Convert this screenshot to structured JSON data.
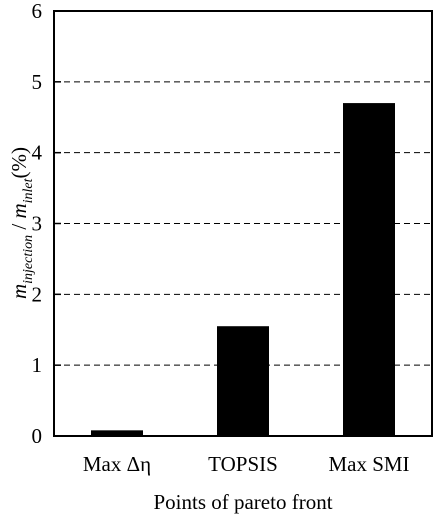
{
  "chart_data": {
    "type": "bar",
    "categories": [
      "Max Δη",
      "TOPSIS",
      "Max SMI"
    ],
    "values": [
      0.08,
      1.55,
      4.7
    ],
    "xlabel": "Points of pareto front",
    "ylabel": {
      "m1": "m",
      "sub1": "injection",
      "sep": " / ",
      "m2": "m",
      "sub2": "inlet",
      "unit": "(%)"
    },
    "ylim": [
      0,
      6
    ],
    "yticks": [
      0,
      1,
      2,
      3,
      4,
      5,
      6
    ],
    "grid": "horizontal dashed",
    "bar_color": "#000000"
  }
}
